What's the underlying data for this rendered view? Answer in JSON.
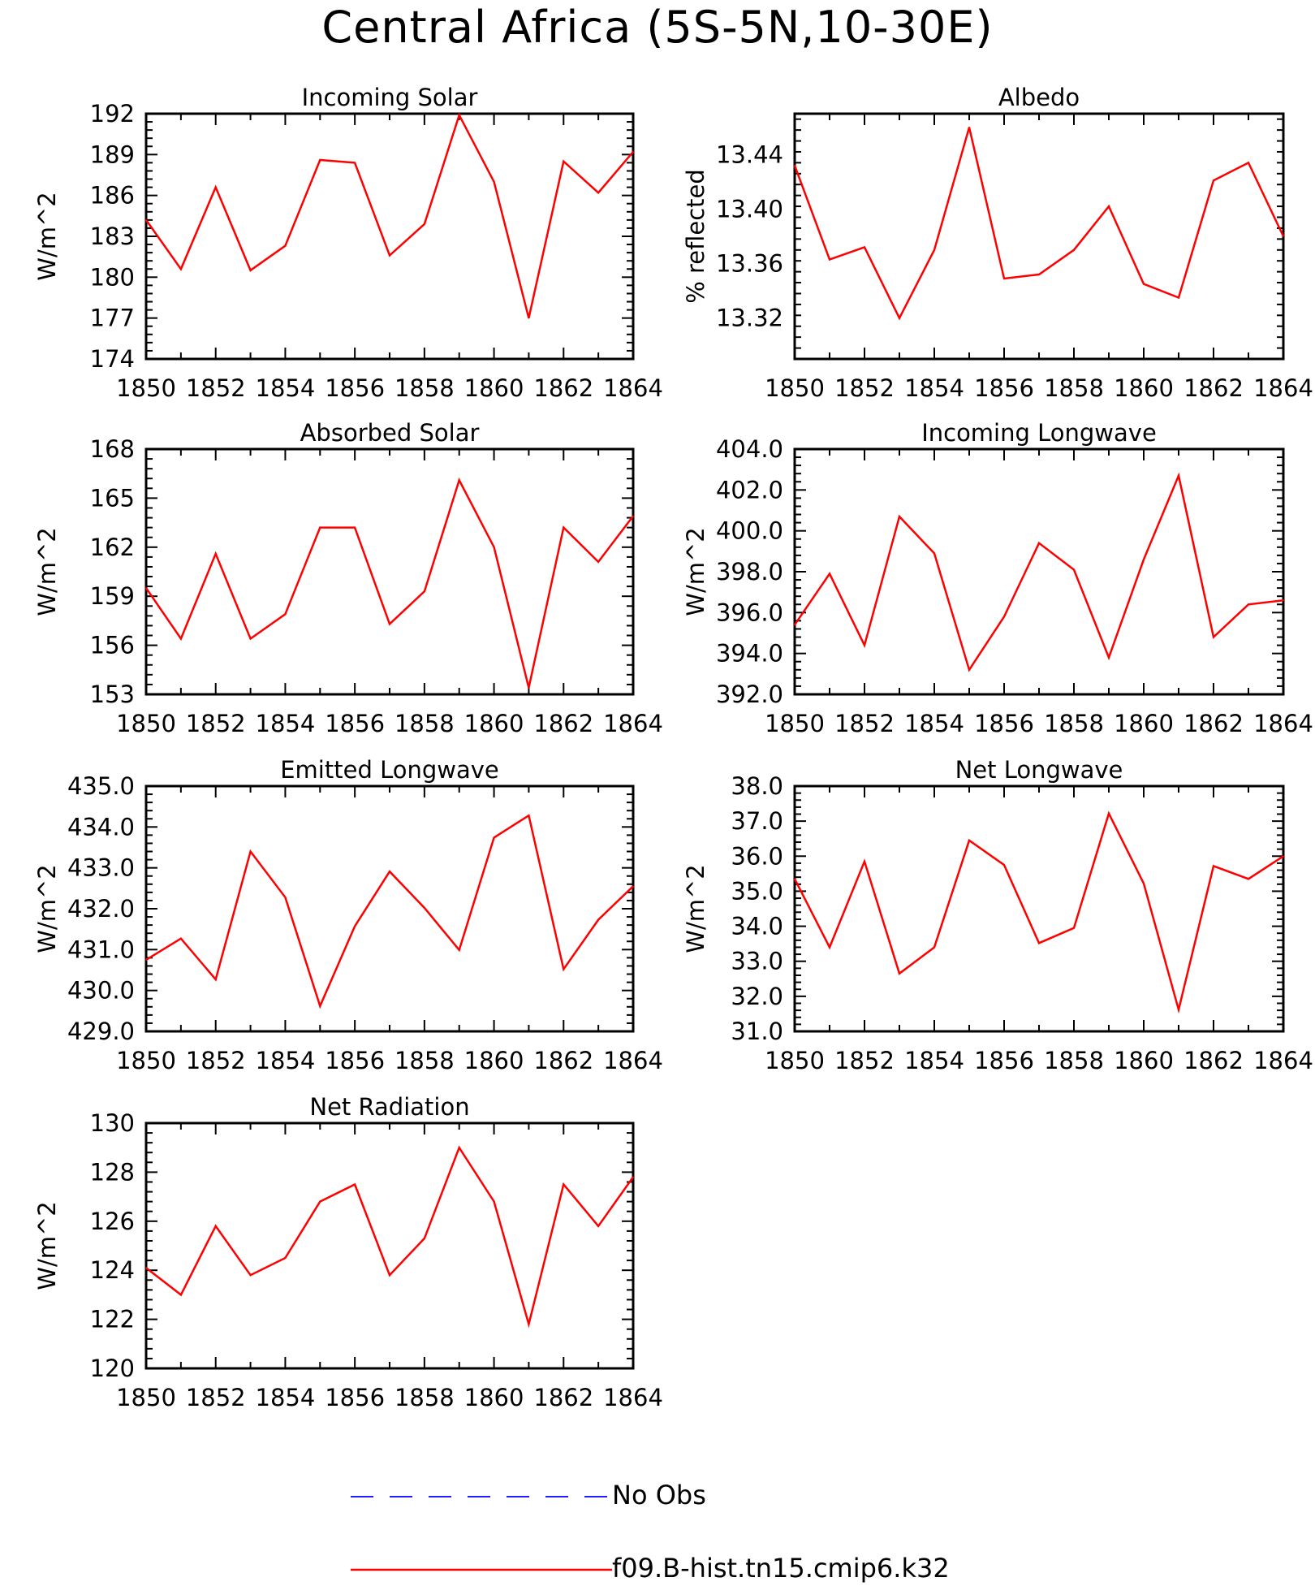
{
  "page": {
    "title": "Central Africa (5S-5N,10-30E)"
  },
  "legend": [
    {
      "label": "No Obs",
      "color": "#2020ff",
      "style": "dashed"
    },
    {
      "label": "f09.B-hist.tn15.cmip6.k32",
      "color": "#ff0000",
      "style": "solid"
    }
  ],
  "chart_data": [
    {
      "type": "line",
      "title": "Incoming Solar",
      "ylabel": "W/m^2",
      "ylim": [
        174,
        192
      ],
      "yticks": [
        "174",
        "177",
        "180",
        "183",
        "186",
        "189",
        "192"
      ],
      "xlim": [
        1850,
        1864
      ],
      "xticks": [
        "1850",
        "1852",
        "1854",
        "1856",
        "1858",
        "1860",
        "1862",
        "1864"
      ],
      "series": [
        {
          "name": "f09.B-hist.tn15.cmip6.k32",
          "x": [
            1850,
            1851,
            1852,
            1853,
            1854,
            1855,
            1856,
            1857,
            1858,
            1859,
            1860,
            1861,
            1862,
            1863,
            1864
          ],
          "values": [
            184.2,
            180.6,
            186.6,
            180.5,
            182.3,
            188.6,
            188.4,
            181.6,
            183.9,
            191.9,
            187.0,
            177.0,
            188.5,
            186.2,
            189.2
          ]
        }
      ]
    },
    {
      "type": "line",
      "title": "Albedo",
      "ylabel": "% reflected",
      "ylim": [
        13.29,
        13.47
      ],
      "yticks": [
        "13.32",
        "13.36",
        "13.40",
        "13.44"
      ],
      "ytick_values": [
        13.32,
        13.36,
        13.4,
        13.44
      ],
      "xlim": [
        1850,
        1864
      ],
      "xticks": [
        "1850",
        "1852",
        "1854",
        "1856",
        "1858",
        "1860",
        "1862",
        "1864"
      ],
      "series": [
        {
          "name": "f09.B-hist.tn15.cmip6.k32",
          "x": [
            1850,
            1851,
            1852,
            1853,
            1854,
            1855,
            1856,
            1857,
            1858,
            1859,
            1860,
            1861,
            1862,
            1863,
            1864
          ],
          "values": [
            13.432,
            13.363,
            13.372,
            13.32,
            13.37,
            13.46,
            13.349,
            13.352,
            13.37,
            13.402,
            13.345,
            13.335,
            13.421,
            13.434,
            13.38
          ]
        }
      ]
    },
    {
      "type": "line",
      "title": "Absorbed Solar",
      "ylabel": "W/m^2",
      "ylim": [
        153,
        168
      ],
      "yticks": [
        "153",
        "156",
        "159",
        "162",
        "165",
        "168"
      ],
      "xlim": [
        1850,
        1864
      ],
      "xticks": [
        "1850",
        "1852",
        "1854",
        "1856",
        "1858",
        "1860",
        "1862",
        "1864"
      ],
      "series": [
        {
          "name": "f09.B-hist.tn15.cmip6.k32",
          "x": [
            1850,
            1851,
            1852,
            1853,
            1854,
            1855,
            1856,
            1857,
            1858,
            1859,
            1860,
            1861,
            1862,
            1863,
            1864
          ],
          "values": [
            159.5,
            156.4,
            161.6,
            156.4,
            157.9,
            163.2,
            163.2,
            157.3,
            159.3,
            166.1,
            162.0,
            153.4,
            163.2,
            161.1,
            163.9
          ]
        }
      ]
    },
    {
      "type": "line",
      "title": "Incoming Longwave",
      "ylabel": "W/m^2",
      "ylim": [
        392,
        404
      ],
      "yticks": [
        "392.0",
        "394.0",
        "396.0",
        "398.0",
        "400.0",
        "402.0",
        "404.0"
      ],
      "xlim": [
        1850,
        1864
      ],
      "xticks": [
        "1850",
        "1852",
        "1854",
        "1856",
        "1858",
        "1860",
        "1862",
        "1864"
      ],
      "series": [
        {
          "name": "f09.B-hist.tn15.cmip6.k32",
          "x": [
            1850,
            1851,
            1852,
            1853,
            1854,
            1855,
            1856,
            1857,
            1858,
            1859,
            1860,
            1861,
            1862,
            1863,
            1864
          ],
          "values": [
            395.4,
            397.9,
            394.4,
            400.7,
            398.9,
            393.2,
            395.8,
            399.4,
            398.1,
            393.8,
            398.6,
            402.7,
            394.8,
            396.4,
            396.6
          ]
        }
      ]
    },
    {
      "type": "line",
      "title": "Emitted Longwave",
      "ylabel": "W/m^2",
      "ylim": [
        429,
        435
      ],
      "yticks": [
        "429.0",
        "430.0",
        "431.0",
        "432.0",
        "433.0",
        "434.0",
        "435.0"
      ],
      "xlim": [
        1850,
        1864
      ],
      "xticks": [
        "1850",
        "1852",
        "1854",
        "1856",
        "1858",
        "1860",
        "1862",
        "1864"
      ],
      "series": [
        {
          "name": "f09.B-hist.tn15.cmip6.k32",
          "x": [
            1850,
            1851,
            1852,
            1853,
            1854,
            1855,
            1856,
            1857,
            1858,
            1859,
            1860,
            1861,
            1862,
            1863,
            1864
          ],
          "values": [
            430.75,
            431.27,
            430.27,
            433.4,
            432.28,
            429.62,
            431.57,
            432.91,
            432.02,
            430.99,
            433.74,
            434.28,
            430.52,
            431.73,
            432.55
          ]
        }
      ]
    },
    {
      "type": "line",
      "title": "Net Longwave",
      "ylabel": "W/m^2",
      "ylim": [
        31,
        38
      ],
      "yticks": [
        "31.0",
        "32.0",
        "33.0",
        "34.0",
        "35.0",
        "36.0",
        "37.0",
        "38.0"
      ],
      "xlim": [
        1850,
        1864
      ],
      "xticks": [
        "1850",
        "1852",
        "1854",
        "1856",
        "1858",
        "1860",
        "1862",
        "1864"
      ],
      "series": [
        {
          "name": "f09.B-hist.tn15.cmip6.k32",
          "x": [
            1850,
            1851,
            1852,
            1853,
            1854,
            1855,
            1856,
            1857,
            1858,
            1859,
            1860,
            1861,
            1862,
            1863,
            1864
          ],
          "values": [
            35.35,
            33.4,
            35.85,
            32.65,
            33.4,
            36.45,
            35.75,
            33.52,
            33.95,
            37.22,
            35.22,
            31.62,
            35.72,
            35.35,
            36.0
          ]
        }
      ]
    },
    {
      "type": "line",
      "title": "Net Radiation",
      "ylabel": "W/m^2",
      "ylim": [
        120,
        130
      ],
      "yticks": [
        "120",
        "122",
        "124",
        "126",
        "128",
        "130"
      ],
      "xlim": [
        1850,
        1864
      ],
      "xticks": [
        "1850",
        "1852",
        "1854",
        "1856",
        "1858",
        "1860",
        "1862",
        "1864"
      ],
      "series": [
        {
          "name": "f09.B-hist.tn15.cmip6.k32",
          "x": [
            1850,
            1851,
            1852,
            1853,
            1854,
            1855,
            1856,
            1857,
            1858,
            1859,
            1860,
            1861,
            1862,
            1863,
            1864
          ],
          "values": [
            124.1,
            123.0,
            125.8,
            123.8,
            124.5,
            126.8,
            127.5,
            123.8,
            125.3,
            129.0,
            126.8,
            121.8,
            127.5,
            125.8,
            127.8
          ]
        }
      ]
    }
  ]
}
